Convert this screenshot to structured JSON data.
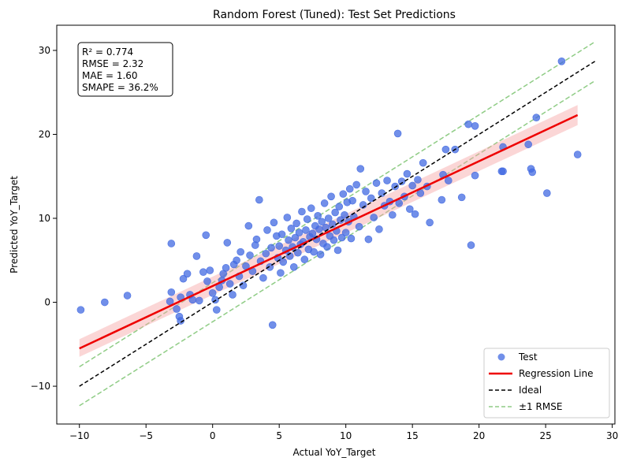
{
  "chart_data": {
    "type": "scatter",
    "title": "Random Forest (Tuned): Test Set Predictions",
    "xlabel": "Actual YoY_Target",
    "ylabel": "Predicted YoY_Target",
    "xlim": [
      -11.7,
      30.2
    ],
    "ylim": [
      -14.5,
      33.0
    ],
    "xticks": [
      -10,
      -5,
      0,
      5,
      10,
      15,
      20,
      25,
      30
    ],
    "yticks": [
      -10,
      0,
      10,
      20,
      30
    ],
    "grid": false,
    "legend_position": "bottom-right",
    "stats": [
      "R² = 0.774",
      "RMSE = 2.32",
      "MAE = 1.60",
      "SMAPE = 36.2%"
    ],
    "rmse": 2.32,
    "colors": {
      "test_points": "#4169e1",
      "regression": "#ee0000",
      "confidence_band": "#f6a5a5",
      "ideal": "#000000",
      "rmse_band": "#8fcc85"
    },
    "series": [
      {
        "name": "Test",
        "kind": "scatter",
        "points": [
          [
            -9.9,
            -0.9
          ],
          [
            -8.1,
            0.0
          ],
          [
            -6.4,
            0.8
          ],
          [
            -3.1,
            7.0
          ],
          [
            -3.2,
            0.1
          ],
          [
            -3.1,
            1.2
          ],
          [
            -2.7,
            -0.8
          ],
          [
            -2.5,
            -1.7
          ],
          [
            -2.4,
            -2.2
          ],
          [
            -2.4,
            0.6
          ],
          [
            -2.2,
            2.8
          ],
          [
            -1.9,
            3.4
          ],
          [
            -1.7,
            0.9
          ],
          [
            -1.5,
            0.3
          ],
          [
            -1.2,
            5.5
          ],
          [
            -1.0,
            0.2
          ],
          [
            -0.7,
            3.6
          ],
          [
            -0.5,
            8.0
          ],
          [
            -0.4,
            2.5
          ],
          [
            -0.2,
            3.8
          ],
          [
            0.0,
            1.1
          ],
          [
            0.2,
            0.3
          ],
          [
            0.3,
            -0.9
          ],
          [
            0.5,
            1.8
          ],
          [
            0.7,
            2.6
          ],
          [
            0.8,
            3.4
          ],
          [
            1.0,
            4.1
          ],
          [
            1.1,
            7.1
          ],
          [
            1.3,
            2.2
          ],
          [
            1.5,
            0.9
          ],
          [
            1.6,
            4.5
          ],
          [
            1.8,
            5.0
          ],
          [
            2.0,
            3.1
          ],
          [
            2.1,
            6.0
          ],
          [
            2.3,
            2.0
          ],
          [
            2.5,
            4.3
          ],
          [
            2.7,
            9.1
          ],
          [
            2.8,
            5.6
          ],
          [
            3.0,
            3.7
          ],
          [
            3.2,
            6.8
          ],
          [
            3.3,
            7.5
          ],
          [
            3.5,
            12.2
          ],
          [
            3.6,
            4.9
          ],
          [
            3.8,
            2.9
          ],
          [
            4.0,
            5.8
          ],
          [
            4.1,
            8.6
          ],
          [
            4.3,
            4.2
          ],
          [
            4.4,
            6.5
          ],
          [
            4.5,
            -2.7
          ],
          [
            4.6,
            9.5
          ],
          [
            4.8,
            7.9
          ],
          [
            4.9,
            5.3
          ],
          [
            5.0,
            6.7
          ],
          [
            5.1,
            3.5
          ],
          [
            5.2,
            8.1
          ],
          [
            5.3,
            4.8
          ],
          [
            5.5,
            6.2
          ],
          [
            5.6,
            10.1
          ],
          [
            5.7,
            7.4
          ],
          [
            5.8,
            5.5
          ],
          [
            5.9,
            8.8
          ],
          [
            6.0,
            6.6
          ],
          [
            6.1,
            4.2
          ],
          [
            6.2,
            7.7
          ],
          [
            6.3,
            9.4
          ],
          [
            6.4,
            5.9
          ],
          [
            6.5,
            8.3
          ],
          [
            6.6,
            6.9
          ],
          [
            6.7,
            10.8
          ],
          [
            6.8,
            7.2
          ],
          [
            6.9,
            5.1
          ],
          [
            7.0,
            8.6
          ],
          [
            7.1,
            9.9
          ],
          [
            7.2,
            6.3
          ],
          [
            7.3,
            7.8
          ],
          [
            7.4,
            11.2
          ],
          [
            7.5,
            8.2
          ],
          [
            7.6,
            6.0
          ],
          [
            7.7,
            9.1
          ],
          [
            7.8,
            7.5
          ],
          [
            7.9,
            10.3
          ],
          [
            8.0,
            8.7
          ],
          [
            8.1,
            5.7
          ],
          [
            8.2,
            9.6
          ],
          [
            8.3,
            7.0
          ],
          [
            8.4,
            11.8
          ],
          [
            8.5,
            8.9
          ],
          [
            8.6,
            6.6
          ],
          [
            8.7,
            10.0
          ],
          [
            8.8,
            7.9
          ],
          [
            8.9,
            12.6
          ],
          [
            9.0,
            9.3
          ],
          [
            9.1,
            7.4
          ],
          [
            9.2,
            10.7
          ],
          [
            9.3,
            8.5
          ],
          [
            9.4,
            6.2
          ],
          [
            9.5,
            11.4
          ],
          [
            9.6,
            9.8
          ],
          [
            9.7,
            7.7
          ],
          [
            9.8,
            12.9
          ],
          [
            9.9,
            10.4
          ],
          [
            10.0,
            8.3
          ],
          [
            10.1,
            11.9
          ],
          [
            10.2,
            9.6
          ],
          [
            10.3,
            13.5
          ],
          [
            10.4,
            7.6
          ],
          [
            10.5,
            12.1
          ],
          [
            10.6,
            10.2
          ],
          [
            10.8,
            14.0
          ],
          [
            11.0,
            9.0
          ],
          [
            11.1,
            15.9
          ],
          [
            11.3,
            11.6
          ],
          [
            11.5,
            13.2
          ],
          [
            11.7,
            7.5
          ],
          [
            11.9,
            12.4
          ],
          [
            12.1,
            10.1
          ],
          [
            12.3,
            14.2
          ],
          [
            12.5,
            8.7
          ],
          [
            12.7,
            13.0
          ],
          [
            12.9,
            11.5
          ],
          [
            13.1,
            14.5
          ],
          [
            13.3,
            12.0
          ],
          [
            13.5,
            10.4
          ],
          [
            13.7,
            13.8
          ],
          [
            13.9,
            20.1
          ],
          [
            14.0,
            11.8
          ],
          [
            14.2,
            14.4
          ],
          [
            14.4,
            12.6
          ],
          [
            14.6,
            15.3
          ],
          [
            14.8,
            11.1
          ],
          [
            15.0,
            13.9
          ],
          [
            15.2,
            10.5
          ],
          [
            15.4,
            14.6
          ],
          [
            15.6,
            13.0
          ],
          [
            15.8,
            16.6
          ],
          [
            16.1,
            13.8
          ],
          [
            16.3,
            9.5
          ],
          [
            17.2,
            12.2
          ],
          [
            17.3,
            15.2
          ],
          [
            17.5,
            18.2
          ],
          [
            17.7,
            14.5
          ],
          [
            18.2,
            18.2
          ],
          [
            18.7,
            12.5
          ],
          [
            19.2,
            21.2
          ],
          [
            19.4,
            6.8
          ],
          [
            19.7,
            21.0
          ],
          [
            19.7,
            15.1
          ],
          [
            21.7,
            15.6
          ],
          [
            21.8,
            18.5
          ],
          [
            21.8,
            15.6
          ],
          [
            23.7,
            18.8
          ],
          [
            23.9,
            15.9
          ],
          [
            24.0,
            15.5
          ],
          [
            24.3,
            22.0
          ],
          [
            25.1,
            13.0
          ],
          [
            26.2,
            28.7
          ],
          [
            27.4,
            17.6
          ]
        ]
      },
      {
        "name": "Regression Line",
        "kind": "line",
        "x": [
          -10,
          27.4
        ],
        "y": [
          -5.5,
          22.3
        ],
        "ci_upper": [
          -4.4,
          23.5
        ],
        "ci_lower": [
          -6.5,
          21.1
        ]
      },
      {
        "name": "Ideal",
        "kind": "line",
        "x": [
          -10,
          28.7
        ],
        "y": [
          -10,
          28.7
        ]
      },
      {
        "name": "±1 RMSE",
        "kind": "band",
        "x": [
          -10,
          28.7
        ],
        "offset": 2.32
      }
    ]
  }
}
